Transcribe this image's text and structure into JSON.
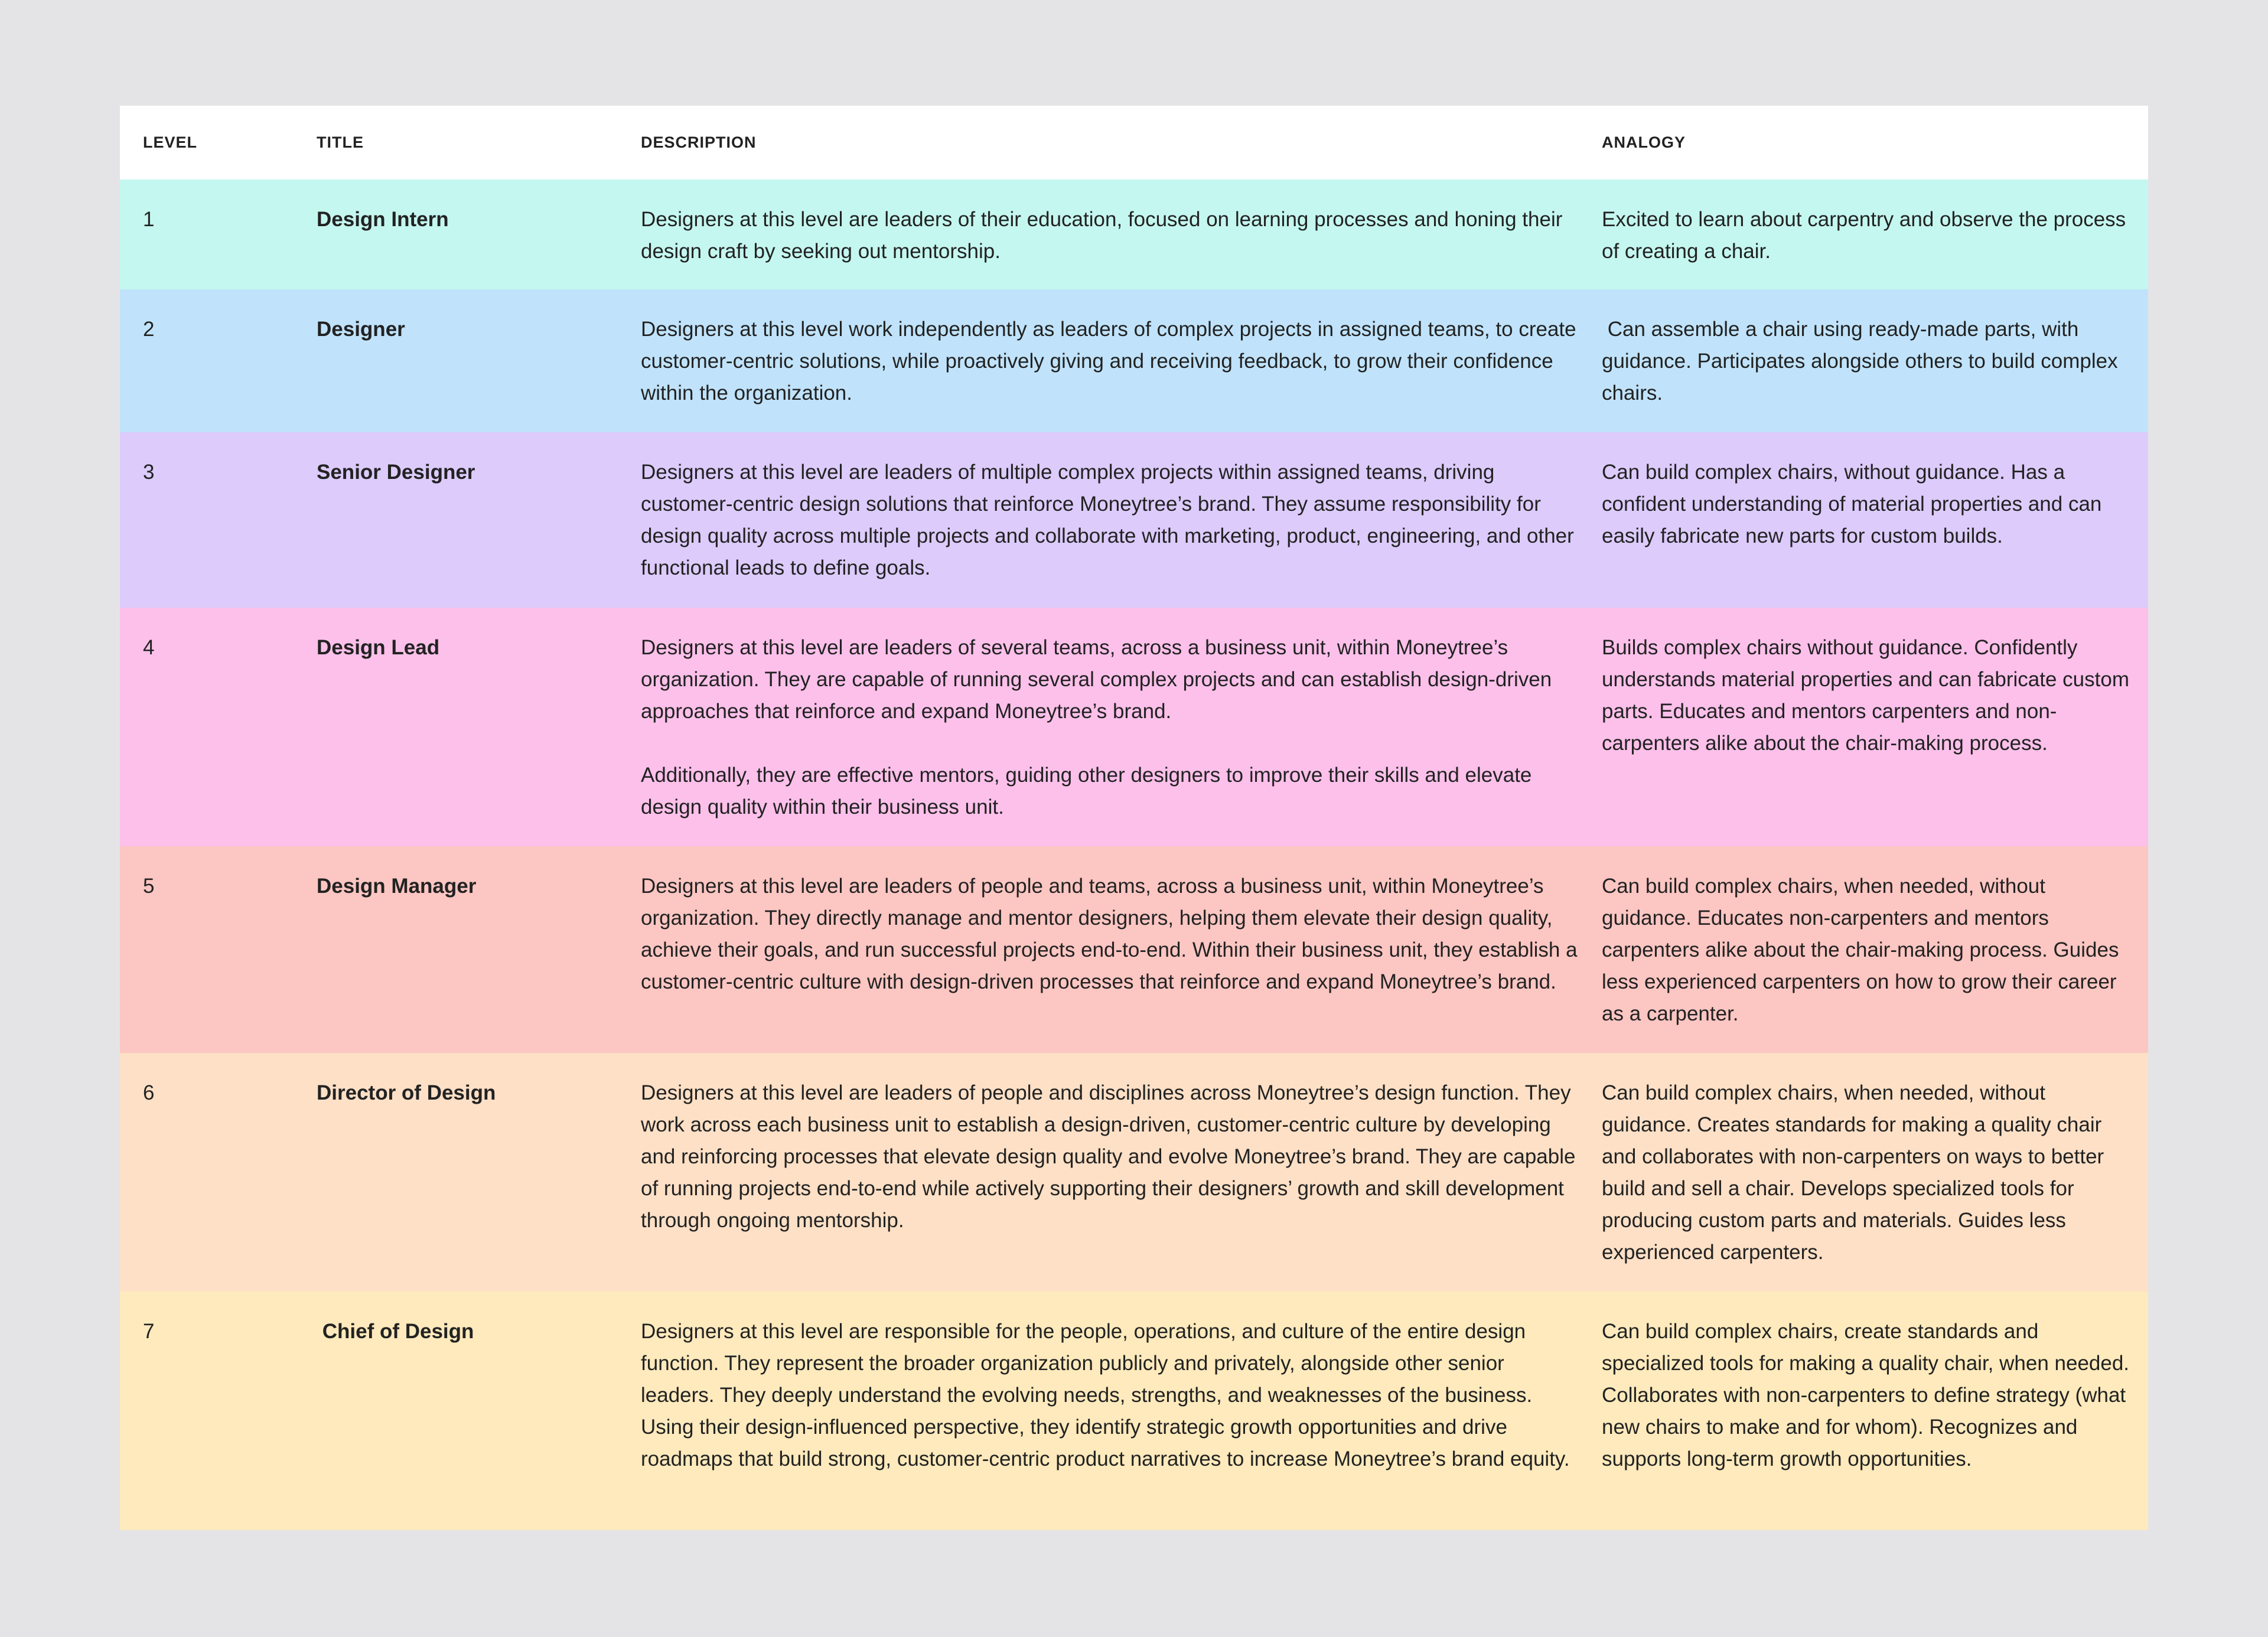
{
  "table": {
    "headers": [
      "LEVEL",
      "TITLE",
      "DESCRIPTION",
      "ANALOGY"
    ],
    "rows": [
      {
        "level": "1",
        "title": "Design Intern",
        "description": [
          "Designers at this level are leaders of their education, focused on learning processes and honing their design craft by seeking out mentorship."
        ],
        "analogy": "Excited to learn about carpentry and observe the process of creating a chair."
      },
      {
        "level": "2",
        "title": "Designer",
        "description": [
          "Designers at this level work independently as leaders of complex projects in assigned teams, to create customer-centric solutions, while proactively giving and receiving feedback, to grow their confidence within the organization."
        ],
        "analogy": " Can assemble a chair using ready-made parts, with guidance. Participates alongside others to build complex chairs."
      },
      {
        "level": "3",
        "title": "Senior Designer",
        "description": [
          "Designers at this level are leaders of multiple complex projects within assigned teams, driving customer-centric design solutions that reinforce Moneytree’s brand. They assume responsibility for design quality across multiple projects and collaborate with marketing, product, engineering, and other functional leads to define goals."
        ],
        "analogy": "Can build complex chairs, without guidance. Has a confident understanding of material properties and can easily fabricate new parts for custom builds."
      },
      {
        "level": "4",
        "title": "Design Lead",
        "description": [
          "Designers at this level are leaders of several teams, across a business unit, within Moneytree’s organization. They are capable of running several complex projects and can establish design-driven approaches that reinforce and expand Moneytree’s brand.",
          "Additionally, they are effective mentors, guiding other designers to improve their skills and elevate design quality within their business unit."
        ],
        "analogy": "Builds complex chairs without guidance. Confidently understands material properties and can fabricate custom parts. Educates and mentors carpenters and non-carpenters alike about the chair-making process."
      },
      {
        "level": "5",
        "title": "Design Manager",
        "description": [
          "Designers at this level are leaders of people and teams, across a business unit, within Moneytree’s organization. They directly manage and mentor designers, helping them elevate their design quality, achieve their goals, and run successful projects end-to-end. Within their business unit, they establish a customer-centric culture with design-driven processes that reinforce and expand Moneytree’s brand."
        ],
        "analogy": "Can build complex chairs, when needed, without guidance. Educates non-carpenters and mentors carpenters alike about the chair-making process. Guides less experienced carpenters on how to grow their career as a carpenter."
      },
      {
        "level": "6",
        "title": "Director of Design",
        "description": [
          "Designers at this level are leaders of people and disciplines across Moneytree’s design function. They work across each business unit to establish a design-driven, customer-centric culture by developing and reinforcing processes that elevate design quality and evolve Moneytree’s brand. They are capable of running projects end-to-end while actively supporting their designers’ growth and skill development through ongoing mentorship."
        ],
        "analogy": "Can build complex chairs, when needed, without guidance. Creates standards for making a quality chair and collaborates with non-carpenters on ways to better build and sell a chair. Develops specialized tools for producing custom parts and materials. Guides less experienced carpenters."
      },
      {
        "level": "7",
        "title": " Chief of Design",
        "description": [
          "Designers at this level are responsible for the people, operations, and culture of the entire design function. They represent the broader organization publicly and privately, alongside other senior leaders. They deeply understand the evolving needs, strengths, and weaknesses of the business. Using their design-influenced perspective, they identify strategic growth opportunities and drive roadmaps that build strong, customer-centric product narratives to increase Moneytree’s brand equity."
        ],
        "analogy": "Can build complex chairs, create standards and specialized tools for making a quality chair, when needed. Collaborates with non-carpenters to define strategy (what new chairs to make and for whom). Recognizes and supports long-term growth opportunities."
      }
    ]
  }
}
